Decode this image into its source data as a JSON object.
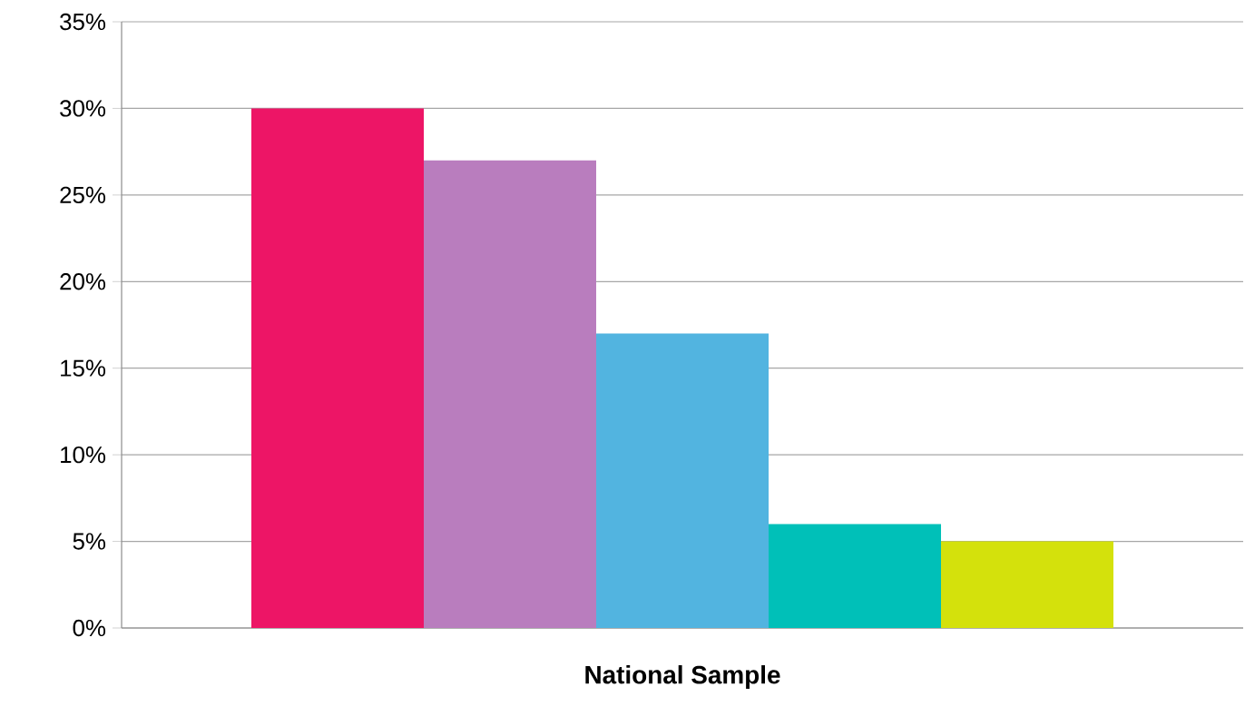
{
  "chart_data": {
    "type": "bar",
    "categories": [
      "National Sample"
    ],
    "series": [
      {
        "color": "#ed1566",
        "values": [
          30
        ]
      },
      {
        "color": "#b97dbe",
        "values": [
          27
        ]
      },
      {
        "color": "#52b4e0",
        "values": [
          17
        ]
      },
      {
        "color": "#00c0b8",
        "values": [
          6
        ]
      },
      {
        "color": "#d4e10c",
        "values": [
          5
        ]
      }
    ],
    "ylim": [
      0,
      35
    ],
    "yticks": [
      {
        "value": 0,
        "label": "0%"
      },
      {
        "value": 5,
        "label": "5%"
      },
      {
        "value": 10,
        "label": "10%"
      },
      {
        "value": 15,
        "label": "15%"
      },
      {
        "value": 20,
        "label": "20%"
      },
      {
        "value": 25,
        "label": "25%"
      },
      {
        "value": 30,
        "label": "30%"
      },
      {
        "value": 35,
        "label": "35%"
      }
    ],
    "grid": "y"
  }
}
